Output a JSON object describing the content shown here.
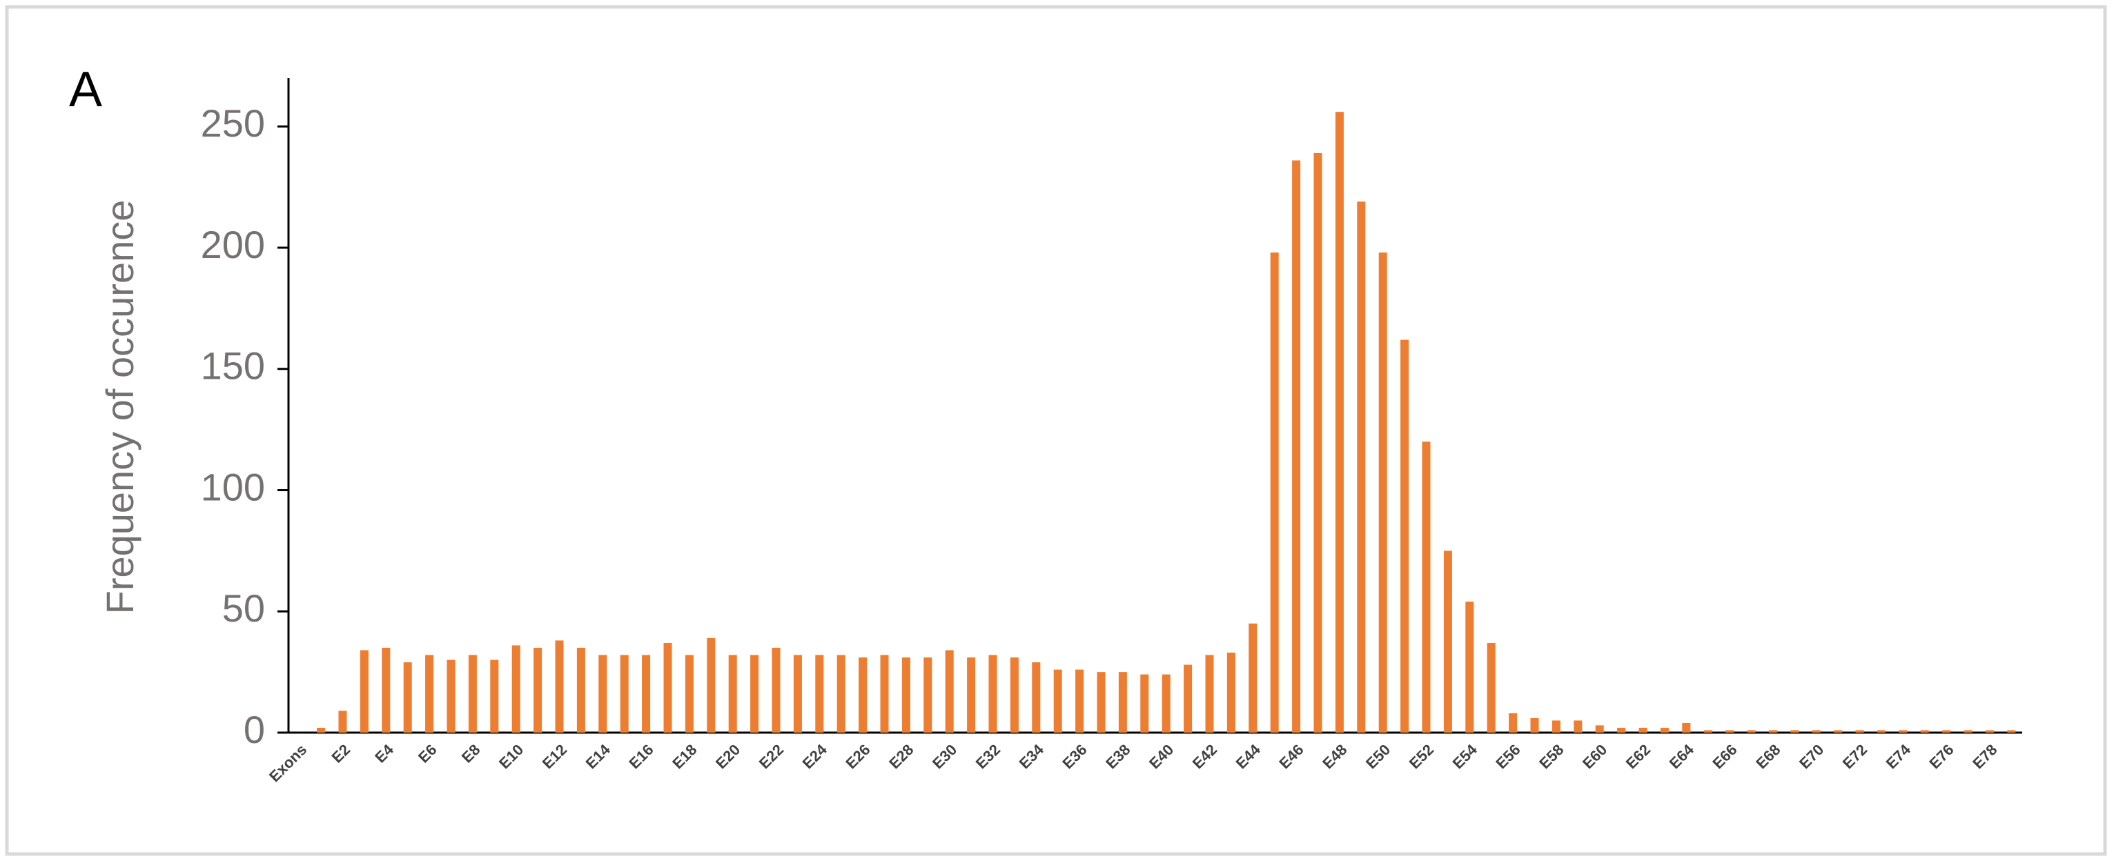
{
  "chart_data": {
    "type": "bar",
    "panel_label": "A",
    "y_label": "Frequency of occurence",
    "categories": [
      "Exons",
      null,
      "E2",
      null,
      "E4",
      null,
      "E6",
      null,
      "E8",
      null,
      "E10",
      null,
      "E12",
      null,
      "E14",
      null,
      "E16",
      null,
      "E18",
      null,
      "E20",
      null,
      "E22",
      null,
      "E24",
      null,
      "E26",
      null,
      "E28",
      null,
      "E30",
      null,
      "E32",
      null,
      "E34",
      null,
      "E36",
      null,
      "E38",
      null,
      "E40",
      null,
      "E42",
      null,
      "E44",
      null,
      "E46",
      null,
      "E48",
      null,
      "E50",
      null,
      "E52",
      null,
      "E54",
      null,
      "E56",
      null,
      "E58",
      null,
      "E60",
      null,
      "E62",
      null,
      "E64",
      null,
      "E66",
      null,
      "E68",
      null,
      "E70",
      null,
      "E72",
      null,
      "E74",
      null,
      "E76",
      null,
      "E78",
      null
    ],
    "values": [
      null,
      2,
      9,
      34,
      35,
      29,
      32,
      30,
      32,
      30,
      36,
      35,
      38,
      35,
      32,
      32,
      32,
      37,
      32,
      39,
      32,
      32,
      35,
      32,
      32,
      32,
      31,
      32,
      31,
      31,
      34,
      31,
      32,
      31,
      29,
      26,
      26,
      25,
      25,
      24,
      24,
      28,
      32,
      33,
      45,
      198,
      236,
      239,
      256,
      219,
      198,
      162,
      120,
      75,
      54,
      37,
      8,
      6,
      5,
      5,
      3,
      2,
      2,
      2,
      4,
      1,
      1,
      1,
      1,
      1,
      1,
      1,
      1,
      1,
      1,
      1,
      1,
      1,
      1,
      1
    ],
    "color": "#ED7D31",
    "ylim": [
      0,
      270
    ],
    "yticks": [
      0,
      50,
      100,
      150,
      200,
      250
    ],
    "grid": false
  }
}
